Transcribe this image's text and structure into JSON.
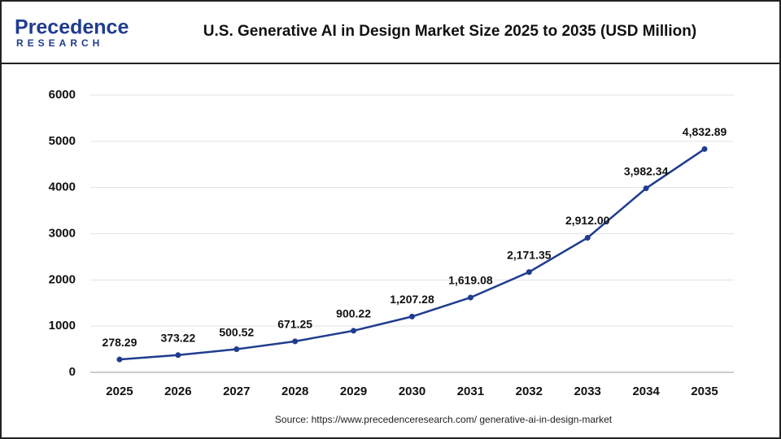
{
  "logo": {
    "name": "Precedence",
    "sub": "RESEARCH"
  },
  "chart_data": {
    "type": "line",
    "title": "U.S. Generative AI in Design Market Size 2025 to 2035 (USD Million)",
    "categories": [
      "2025",
      "2026",
      "2027",
      "2028",
      "2029",
      "2030",
      "2031",
      "2032",
      "2033",
      "2034",
      "2035"
    ],
    "values": [
      278.29,
      373.22,
      500.52,
      671.25,
      900.22,
      1207.28,
      1619.08,
      2171.35,
      2912.0,
      3982.34,
      4832.89
    ],
    "value_labels": [
      "278.29",
      "373.22",
      "500.52",
      "671.25",
      "900.22",
      "1,207.28",
      "1,619.08",
      "2,171.35",
      "2,912.00",
      "3,982.34",
      "4,832.89"
    ],
    "color": "#1f3c8f",
    "ylim": [
      0,
      6000
    ],
    "yticks": [
      0,
      1000,
      2000,
      3000,
      4000,
      5000,
      6000
    ],
    "grid": true,
    "source": "Source: https://www.precedenceresearch.com/ generative-ai-in-design-market"
  }
}
